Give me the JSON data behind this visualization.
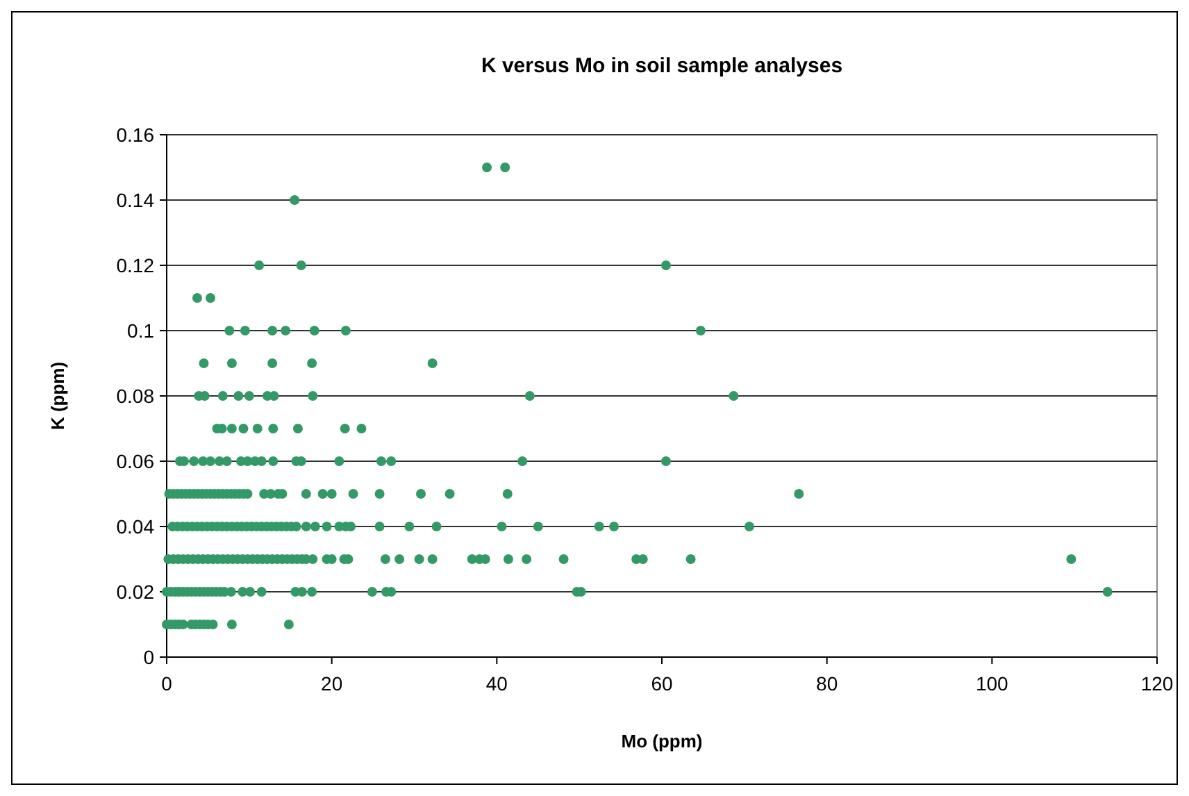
{
  "chart_data": {
    "type": "scatter",
    "title": "K versus Mo in soil sample analyses",
    "xlabel": "Mo (ppm)",
    "ylabel": "K (ppm)",
    "xlim": [
      0,
      120
    ],
    "xticks": [
      0,
      20,
      40,
      60,
      80,
      100,
      120
    ],
    "ylim": [
      0,
      0.16
    ],
    "yticks": [
      0,
      0.02,
      0.04,
      0.06,
      0.08,
      0.1,
      0.12,
      0.14,
      0.16
    ],
    "grid": "y",
    "marker": "circle",
    "series": [
      {
        "color": "#339966",
        "x": [
          38.8,
          41.0
        ],
        "values": [
          0.15,
          0.15
        ]
      },
      {
        "color": "#339966",
        "x": [
          15.5
        ],
        "values": [
          0.14
        ]
      },
      {
        "color": "#339966",
        "x": [
          11.2,
          16.3,
          60.5
        ],
        "values": [
          0.12,
          0.12,
          0.12
        ]
      },
      {
        "color": "#339966",
        "x": [
          3.7,
          5.3
        ],
        "values": [
          0.11,
          0.11
        ]
      },
      {
        "color": "#339966",
        "x": [
          7.6,
          9.5,
          12.8,
          14.4,
          17.9,
          21.7,
          64.7
        ],
        "values": [
          0.1,
          0.1,
          0.1,
          0.1,
          0.1,
          0.1,
          0.1
        ]
      },
      {
        "color": "#339966",
        "x": [
          4.5,
          7.9,
          12.8,
          17.6,
          32.2
        ],
        "values": [
          0.09,
          0.09,
          0.09,
          0.09,
          0.09
        ]
      },
      {
        "color": "#339966",
        "x": [
          3.9,
          4.6,
          6.8,
          8.7,
          10,
          12.2,
          13,
          17.7,
          44,
          68.7
        ],
        "values": [
          0.08,
          0.08,
          0.08,
          0.08,
          0.08,
          0.08,
          0.08,
          0.08,
          0.08,
          0.08
        ]
      },
      {
        "color": "#339966",
        "x": [
          6.1,
          6.7,
          7.9,
          9.3,
          11,
          12.9,
          15.9,
          21.6,
          23.6
        ],
        "values": [
          0.07,
          0.07,
          0.07,
          0.07,
          0.07,
          0.07,
          0.07,
          0.07,
          0.07
        ]
      },
      {
        "color": "#339966",
        "x": [
          1.6,
          2.1,
          3.3,
          4.4,
          5.3,
          6.4,
          7.3,
          9,
          9.8,
          10.7,
          11.5,
          12.9,
          15.7,
          16.3,
          20.9,
          26,
          27.2,
          43.1,
          60.5
        ],
        "values": [
          0.06,
          0.06,
          0.06,
          0.06,
          0.06,
          0.06,
          0.06,
          0.06,
          0.06,
          0.06,
          0.06,
          0.06,
          0.06,
          0.06,
          0.06,
          0.06,
          0.06,
          0.06,
          0.06
        ]
      },
      {
        "color": "#339966",
        "x": [
          0.3,
          0.8,
          1.3,
          1.8,
          2.3,
          2.8,
          3.3,
          3.8,
          4.3,
          4.8,
          5.3,
          5.8,
          6.3,
          6.8,
          7.3,
          7.8,
          8.3,
          8.8,
          9.3,
          9.8,
          11.8,
          12.6,
          13.5,
          14,
          16.9,
          18.9,
          20,
          22.6,
          25.8,
          30.8,
          34.3,
          41.3,
          76.6
        ],
        "values": [
          0.05,
          0.05,
          0.05,
          0.05,
          0.05,
          0.05,
          0.05,
          0.05,
          0.05,
          0.05,
          0.05,
          0.05,
          0.05,
          0.05,
          0.05,
          0.05,
          0.05,
          0.05,
          0.05,
          0.05,
          0.05,
          0.05,
          0.05,
          0.05,
          0.05,
          0.05,
          0.05,
          0.05,
          0.05,
          0.05,
          0.05,
          0.05,
          0.05
        ]
      },
      {
        "color": "#339966",
        "x": [
          0.7,
          1.3,
          1.9,
          2.5,
          3.1,
          3.7,
          4.3,
          4.9,
          5.5,
          6.1,
          6.7,
          7.3,
          7.9,
          8.5,
          9.1,
          9.7,
          10.3,
          10.9,
          11.5,
          12.1,
          12.7,
          13.3,
          13.9,
          14.5,
          15.1,
          15.7,
          16.9,
          18,
          19.4,
          20.9,
          21.7,
          22.3,
          25.8,
          29.4,
          32.7,
          40.6,
          45,
          52.4,
          54.2,
          70.6
        ],
        "values": [
          0.04,
          0.04,
          0.04,
          0.04,
          0.04,
          0.04,
          0.04,
          0.04,
          0.04,
          0.04,
          0.04,
          0.04,
          0.04,
          0.04,
          0.04,
          0.04,
          0.04,
          0.04,
          0.04,
          0.04,
          0.04,
          0.04,
          0.04,
          0.04,
          0.04,
          0.04,
          0.04,
          0.04,
          0.04,
          0.04,
          0.04,
          0.04,
          0.04,
          0.04,
          0.04,
          0.04,
          0.04,
          0.04,
          0.04,
          0.04
        ]
      },
      {
        "color": "#339966",
        "x": [
          0.2,
          0.8,
          1.4,
          2,
          2.6,
          3.2,
          3.8,
          4.4,
          5,
          5.6,
          6.2,
          6.8,
          7.4,
          8,
          8.6,
          9.2,
          9.8,
          10.4,
          11,
          11.6,
          12.2,
          12.8,
          13.4,
          14,
          14.6,
          15.2,
          15.8,
          16.4,
          16.9,
          17.7,
          19.4,
          20,
          21.5,
          22,
          26.5,
          28.2,
          30.6,
          32.2,
          37,
          37.9,
          38.6,
          41.4,
          43.6,
          48.1,
          56.9,
          57.7,
          63.5,
          109.6
        ],
        "values": [
          0.03,
          0.03,
          0.03,
          0.03,
          0.03,
          0.03,
          0.03,
          0.03,
          0.03,
          0.03,
          0.03,
          0.03,
          0.03,
          0.03,
          0.03,
          0.03,
          0.03,
          0.03,
          0.03,
          0.03,
          0.03,
          0.03,
          0.03,
          0.03,
          0.03,
          0.03,
          0.03,
          0.03,
          0.03,
          0.03,
          0.03,
          0.03,
          0.03,
          0.03,
          0.03,
          0.03,
          0.03,
          0.03,
          0.03,
          0.03,
          0.03,
          0.03,
          0.03,
          0.03,
          0.03,
          0.03,
          0.03,
          0.03
        ]
      },
      {
        "color": "#339966",
        "x": [
          0,
          0.5,
          1,
          1.5,
          2,
          2.5,
          3,
          3.5,
          4,
          4.5,
          5,
          5.5,
          6,
          6.5,
          7,
          7.8,
          9.2,
          10.1,
          11.5,
          15.6,
          16.4,
          17.6,
          24.9,
          26.6,
          27.2,
          49.7,
          50.2,
          114
        ],
        "values": [
          0.02,
          0.02,
          0.02,
          0.02,
          0.02,
          0.02,
          0.02,
          0.02,
          0.02,
          0.02,
          0.02,
          0.02,
          0.02,
          0.02,
          0.02,
          0.02,
          0.02,
          0.02,
          0.02,
          0.02,
          0.02,
          0.02,
          0.02,
          0.02,
          0.02,
          0.02,
          0.02,
          0.02
        ]
      },
      {
        "color": "#339966",
        "x": [
          0,
          0.5,
          1,
          1.5,
          2,
          3,
          3.5,
          4,
          4.5,
          5,
          5.6,
          7.9,
          14.8
        ],
        "values": [
          0.01,
          0.01,
          0.01,
          0.01,
          0.01,
          0.01,
          0.01,
          0.01,
          0.01,
          0.01,
          0.01,
          0.01,
          0.01
        ]
      }
    ]
  }
}
